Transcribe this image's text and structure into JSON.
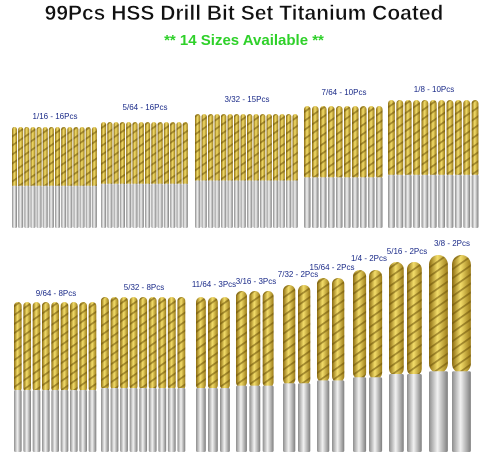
{
  "header": {
    "title": "99Pcs HSS Drill Bit Set Titanium Coated",
    "subtitle": "** 14 Sizes Available **"
  },
  "groups": [
    {
      "label": "1/16 - 16Pcs"
    },
    {
      "label": "5/64 - 16Pcs"
    },
    {
      "label": "3/32 - 15Pcs"
    },
    {
      "label": "7/64 - 10Pcs"
    },
    {
      "label": "1/8 - 10Pcs"
    },
    {
      "label": "9/64 - 8Pcs"
    },
    {
      "label": "5/32 - 8Pcs"
    },
    {
      "label": "11/64 - 3Pcs"
    },
    {
      "label": "3/16 - 3Pcs"
    },
    {
      "label": "7/32 - 2Pcs"
    },
    {
      "label": "15/64 - 2Pcs"
    },
    {
      "label": "1/4 - 2Pcs"
    },
    {
      "label": "5/16 - 2Pcs"
    },
    {
      "label": "3/8 - 2Pcs"
    }
  ]
}
